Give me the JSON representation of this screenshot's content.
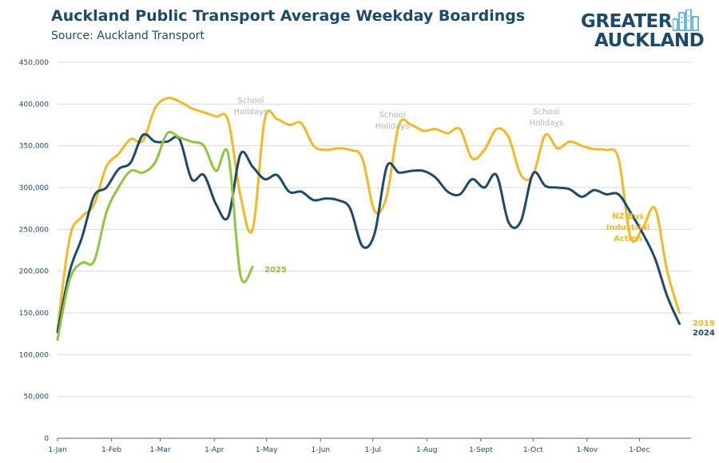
{
  "title": "Auckland Public Transport Average Weekday Boardings",
  "subtitle": "Source: Auckland Transport",
  "logo": {
    "line1": "GREATER",
    "line2": "AUCKLAND"
  },
  "chart_data": {
    "type": "line",
    "title": "Auckland Public Transport Average Weekday Boardings",
    "xlabel": "",
    "ylabel": "",
    "x_ticks": [
      "1-Jan",
      "1-Feb",
      "1-Mar",
      "1-Apr",
      "1-May",
      "1-Jun",
      "1-Jul",
      "1-Aug",
      "1-Sept",
      "1-Oct",
      "1-Nov",
      "1-Dec"
    ],
    "y_ticks": [
      "0",
      "50,000",
      "100,000",
      "150,000",
      "200,000",
      "250,000",
      "300,000",
      "350,000",
      "400,000",
      "450,000"
    ],
    "ylim": [
      0,
      450000
    ],
    "grid": true,
    "series": [
      {
        "name": "2019",
        "color": "#f4b921",
        "x": [
          "1-Jan",
          "8-Jan",
          "15-Jan",
          "22-Jan",
          "29-Jan",
          "5-Feb",
          "12-Feb",
          "19-Feb",
          "26-Feb",
          "5-Mar",
          "12-Mar",
          "19-Mar",
          "26-Mar",
          "2-Apr",
          "9-Apr",
          "16-Apr",
          "23-Apr",
          "30-Apr",
          "7-May",
          "14-May",
          "21-May",
          "28-May",
          "4-Jun",
          "11-Jun",
          "18-Jun",
          "25-Jun",
          "2-Jul",
          "9-Jul",
          "16-Jul",
          "23-Jul",
          "30-Jul",
          "6-Aug",
          "13-Aug",
          "20-Aug",
          "27-Aug",
          "3-Sep",
          "10-Sep",
          "17-Sep",
          "24-Sep",
          "1-Oct",
          "8-Oct",
          "15-Oct",
          "22-Oct",
          "29-Oct",
          "5-Nov",
          "12-Nov",
          "19-Nov",
          "26-Nov",
          "3-Dec",
          "10-Dec",
          "17-Dec",
          "24-Dec"
        ],
        "values": [
          130000,
          240000,
          265000,
          280000,
          325000,
          340000,
          358000,
          356000,
          395000,
          407000,
          403000,
          395000,
          390000,
          385000,
          380000,
          290000,
          250000,
          382000,
          382000,
          375000,
          377000,
          350000,
          345000,
          347000,
          345000,
          335000,
          272000,
          290000,
          375000,
          375000,
          368000,
          370000,
          365000,
          370000,
          335000,
          345000,
          370000,
          360000,
          315000,
          315000,
          363000,
          347000,
          355000,
          350000,
          346000,
          345000,
          335000,
          240000,
          252000,
          275000,
          200000,
          150000
        ]
      },
      {
        "name": "2024",
        "color": "#1b4a6b",
        "x": [
          "1-Jan",
          "8-Jan",
          "15-Jan",
          "22-Jan",
          "29-Jan",
          "5-Feb",
          "12-Feb",
          "19-Feb",
          "26-Feb",
          "5-Mar",
          "12-Mar",
          "19-Mar",
          "26-Mar",
          "2-Apr",
          "9-Apr",
          "16-Apr",
          "23-Apr",
          "30-Apr",
          "7-May",
          "14-May",
          "21-May",
          "28-May",
          "4-Jun",
          "11-Jun",
          "18-Jun",
          "25-Jun",
          "2-Jul",
          "9-Jul",
          "16-Jul",
          "23-Jul",
          "30-Jul",
          "6-Aug",
          "13-Aug",
          "20-Aug",
          "27-Aug",
          "3-Sep",
          "10-Sep",
          "17-Sep",
          "24-Sep",
          "1-Oct",
          "8-Oct",
          "15-Oct",
          "22-Oct",
          "29-Oct",
          "5-Nov",
          "12-Nov",
          "19-Nov",
          "26-Nov",
          "3-Dec",
          "10-Dec",
          "17-Dec",
          "24-Dec"
        ],
        "values": [
          127000,
          200000,
          240000,
          290000,
          300000,
          322000,
          330000,
          363000,
          355000,
          355000,
          358000,
          310000,
          315000,
          280000,
          265000,
          340000,
          325000,
          310000,
          315000,
          295000,
          295000,
          285000,
          287000,
          285000,
          275000,
          230000,
          245000,
          325000,
          318000,
          320000,
          320000,
          312000,
          295000,
          292000,
          310000,
          300000,
          315000,
          258000,
          260000,
          317000,
          302000,
          300000,
          298000,
          289000,
          297000,
          292000,
          292000,
          270000,
          245000,
          215000,
          170000,
          137000
        ]
      },
      {
        "name": "2025",
        "color": "#8dc63f",
        "x": [
          "1-Jan",
          "8-Jan",
          "15-Jan",
          "22-Jan",
          "29-Jan",
          "5-Feb",
          "12-Feb",
          "19-Feb",
          "26-Feb",
          "5-Mar",
          "12-Mar",
          "19-Mar",
          "26-Mar",
          "2-Apr",
          "9-Apr",
          "16-Apr",
          "23-Apr"
        ],
        "values": [
          118000,
          190000,
          210000,
          212000,
          270000,
          300000,
          320000,
          318000,
          330000,
          365000,
          360000,
          355000,
          350000,
          320000,
          340000,
          195000,
          205000
        ]
      }
    ],
    "annotations": [
      {
        "text": "School Holidays",
        "line1": "School",
        "line2": "Holidays",
        "color": "#b3b3b3"
      },
      {
        "text": "School Holidays",
        "line1": "School",
        "line2": "Holidays",
        "color": "#b3b3b3"
      },
      {
        "text": "School Holidays",
        "line1": "School",
        "line2": "Holidays",
        "color": "#b3b3b3"
      },
      {
        "text": "NZ Bus Industrial Action",
        "line1": "NZ Bus",
        "line2": "Industrial",
        "line3": "Action",
        "color": "#f4b921"
      }
    ]
  }
}
